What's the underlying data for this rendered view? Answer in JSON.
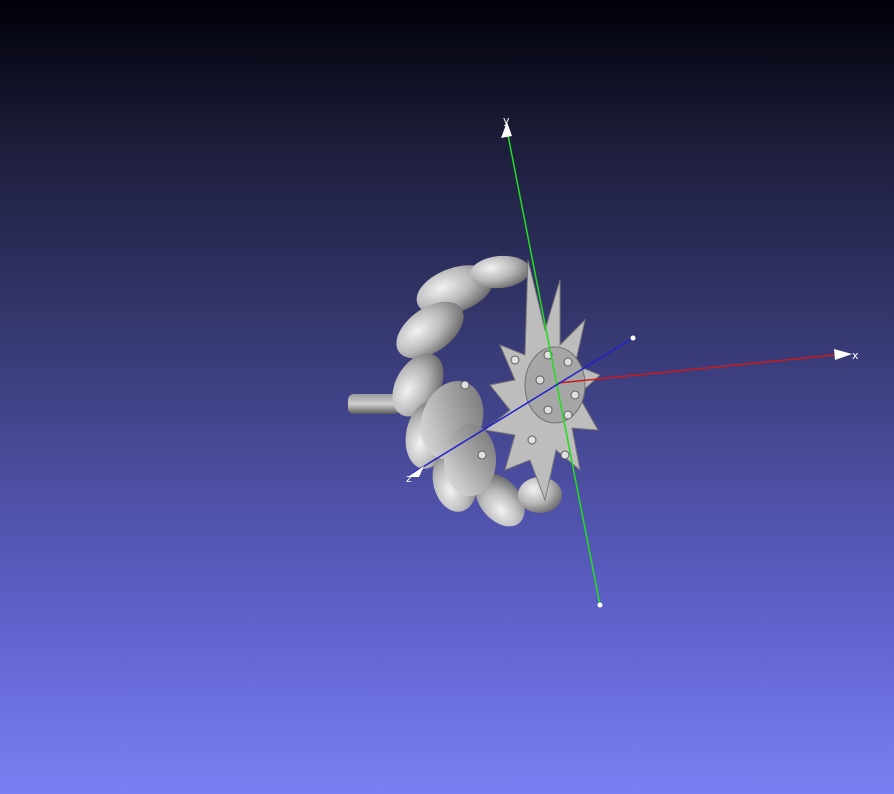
{
  "viewer": {
    "background_top": "#000008",
    "background_bottom": "#7b7ff3"
  },
  "axes": {
    "x": {
      "label": "x",
      "color": "#cc1a1a"
    },
    "y": {
      "label": "y",
      "color": "#22dd22"
    },
    "z": {
      "label": "z",
      "color": "#1a1acc"
    }
  },
  "model": {
    "name": "mecanum-wheel",
    "color": "#c8c8c8"
  }
}
